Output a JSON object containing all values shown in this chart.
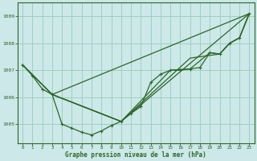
{
  "background_color": "#cce8e8",
  "grid_color": "#99ccbb",
  "line_color": "#2d6628",
  "xlabel": "Graphe pression niveau de la mer (hPa)",
  "ylim": [
    1004.3,
    1009.5
  ],
  "xlim": [
    -0.5,
    23.5
  ],
  "yticks": [
    1005,
    1006,
    1007,
    1008,
    1009
  ],
  "xticks": [
    0,
    1,
    2,
    3,
    4,
    5,
    6,
    7,
    8,
    9,
    10,
    11,
    12,
    13,
    14,
    15,
    16,
    17,
    18,
    19,
    20,
    21,
    22,
    23
  ],
  "line1_x": [
    0,
    1,
    2,
    3,
    4,
    5,
    6,
    7,
    8,
    9,
    10,
    11,
    12,
    13,
    14,
    15,
    16,
    17,
    18,
    19,
    20,
    21,
    22,
    23
  ],
  "line1_y": [
    1007.2,
    1006.8,
    1006.3,
    1006.1,
    1005.0,
    1004.85,
    1004.7,
    1004.6,
    1004.75,
    1004.95,
    1005.1,
    1005.4,
    1005.65,
    1006.55,
    1006.85,
    1007.0,
    1007.0,
    1007.05,
    1007.1,
    1007.65,
    1007.6,
    1008.0,
    1008.2,
    1009.1
  ],
  "line2_x": [
    0,
    3,
    23
  ],
  "line2_y": [
    1007.2,
    1006.1,
    1009.1
  ],
  "line3_x": [
    3,
    10,
    23
  ],
  "line3_y": [
    1006.1,
    1005.1,
    1009.1
  ],
  "line4_x": [
    0,
    3,
    10,
    17,
    20,
    21,
    22,
    23
  ],
  "line4_y": [
    1007.2,
    1006.1,
    1005.1,
    1007.45,
    1007.6,
    1008.0,
    1008.2,
    1009.1
  ],
  "line5_x": [
    0,
    3,
    10,
    15,
    17,
    19,
    20,
    21,
    22,
    23
  ],
  "line5_y": [
    1007.2,
    1006.1,
    1005.1,
    1007.0,
    1007.05,
    1007.65,
    1007.6,
    1008.0,
    1008.2,
    1009.1
  ]
}
